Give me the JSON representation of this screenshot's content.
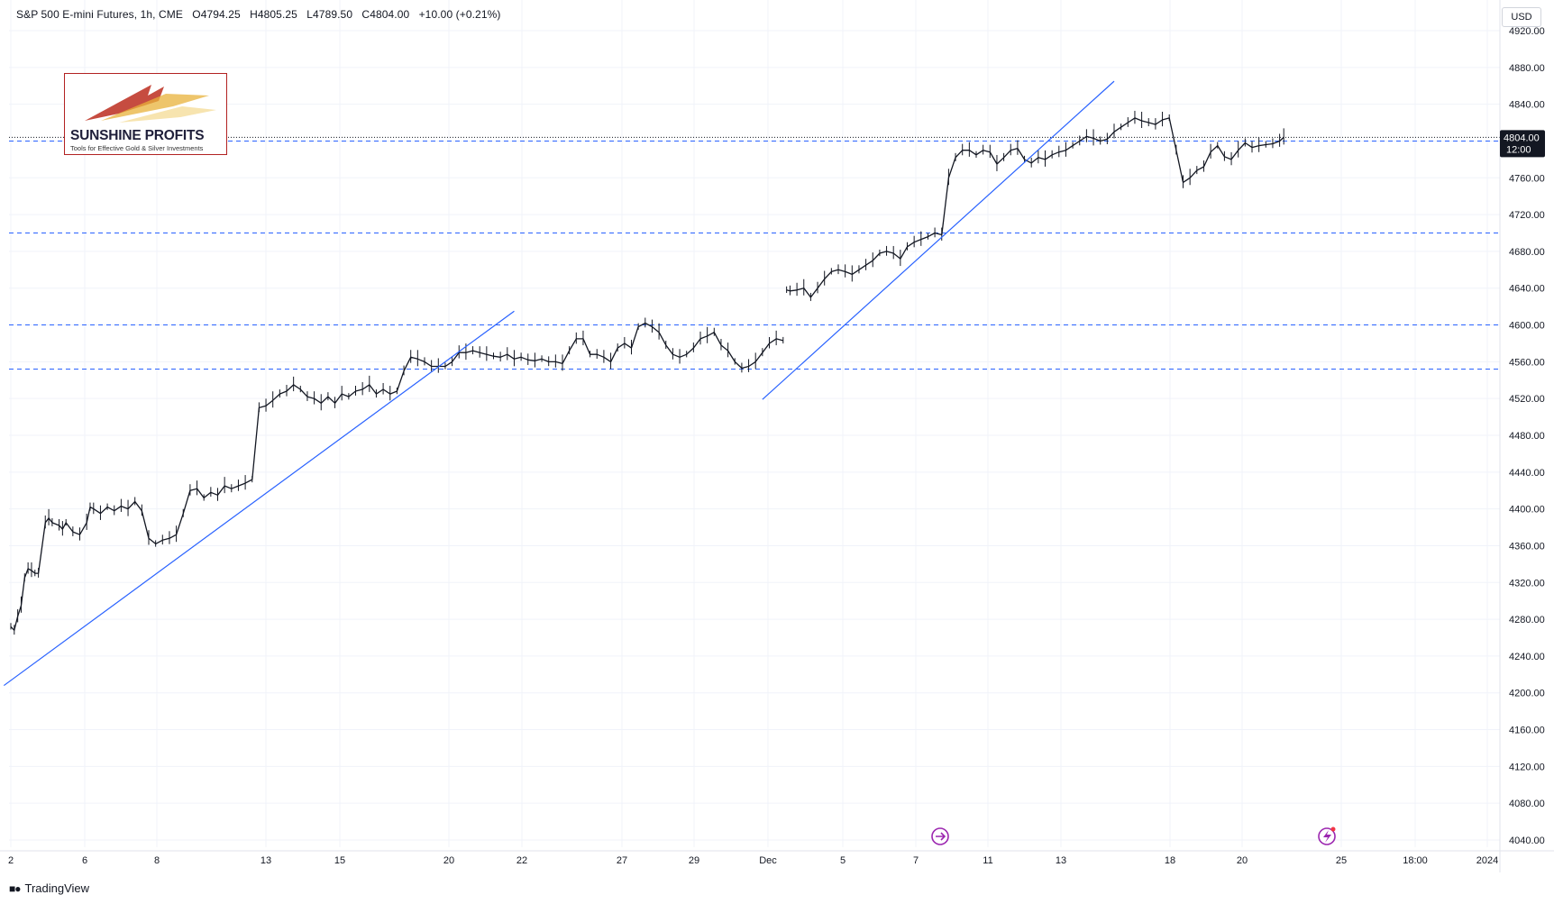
{
  "header": {
    "symbol_line": "S&P 500 E-mini Futures, 1h, CME",
    "open": "O4794.25",
    "high": "H4805.25",
    "low": "L4789.50",
    "close": "C4804.00",
    "change": "+10.00 (+0.21%)",
    "currency": "USD"
  },
  "logo": {
    "title": "SUNSHINE PROFITS",
    "subtitle": "Tools for Effective Gold & Silver Investments"
  },
  "footer": {
    "brand": "TradingView"
  },
  "colors": {
    "price": "#131722",
    "trendline": "#2962ff",
    "level": "#2962ff",
    "grid": "#f0f3fa",
    "axis_text": "#131722",
    "price_label_bg": "#131722",
    "logo_border": "#b22222",
    "event_icon": "#9c27b0"
  },
  "chart_data": {
    "type": "line",
    "title": "S&P 500 E-mini Futures, 1h, CME",
    "interval": "1h",
    "ylim": [
      4040,
      4920
    ],
    "y_ticks": [
      "4040.00",
      "4080.00",
      "4120.00",
      "4160.00",
      "4200.00",
      "4240.00",
      "4280.00",
      "4320.00",
      "4360.00",
      "4400.00",
      "4440.00",
      "4480.00",
      "4520.00",
      "4560.00",
      "4600.00",
      "4640.00",
      "4680.00",
      "4720.00",
      "4760.00",
      "4800.00",
      "4840.00",
      "4880.00",
      "4920.00"
    ],
    "x_labels": [
      "2",
      "6",
      "8",
      "13",
      "15",
      "20",
      "22",
      "27",
      "29",
      "Dec",
      "5",
      "7",
      "11",
      "13",
      "18",
      "20",
      "25",
      "18:00",
      "2024"
    ],
    "grid": true,
    "last_price": {
      "value": "4804.00",
      "time": "12:00"
    },
    "series": [
      {
        "values": [
          [
            0,
            4272
          ],
          [
            0.5,
            4268
          ],
          [
            1,
            4283
          ],
          [
            1.5,
            4295
          ],
          [
            2,
            4325
          ],
          [
            2.5,
            4335
          ],
          [
            3,
            4333
          ],
          [
            3.5,
            4330
          ],
          [
            4,
            4330
          ],
          [
            5,
            4385
          ],
          [
            5.5,
            4390
          ],
          [
            6,
            4385
          ],
          [
            7,
            4382
          ],
          [
            7.5,
            4378
          ],
          [
            8,
            4385
          ],
          [
            9,
            4375
          ],
          [
            10,
            4372
          ],
          [
            11,
            4385
          ],
          [
            11.5,
            4402
          ],
          [
            12,
            4400
          ],
          [
            13,
            4395
          ],
          [
            14,
            4402
          ],
          [
            15,
            4398
          ],
          [
            16,
            4403
          ],
          [
            17,
            4400
          ],
          [
            18,
            4408
          ],
          [
            19,
            4398
          ],
          [
            20,
            4368
          ],
          [
            21,
            4362
          ],
          [
            22,
            4366
          ],
          [
            23,
            4368
          ],
          [
            24,
            4372
          ],
          [
            25,
            4395
          ],
          [
            26,
            4420
          ],
          [
            27,
            4422
          ],
          [
            28,
            4412
          ],
          [
            29,
            4418
          ],
          [
            30,
            4415
          ],
          [
            31,
            4425
          ],
          [
            32,
            4422
          ],
          [
            33,
            4425
          ],
          [
            34,
            4428
          ],
          [
            35,
            4432
          ],
          [
            36,
            4510
          ],
          [
            37,
            4512
          ],
          [
            38,
            4518
          ],
          [
            39,
            4525
          ],
          [
            40,
            4528
          ],
          [
            41,
            4535
          ],
          [
            42,
            4530
          ],
          [
            43,
            4522
          ],
          [
            44,
            4520
          ],
          [
            45,
            4515
          ],
          [
            46,
            4522
          ],
          [
            47,
            4515
          ],
          [
            48,
            4525
          ],
          [
            49,
            4522
          ],
          [
            50,
            4528
          ],
          [
            51,
            4530
          ],
          [
            52,
            4535
          ],
          [
            53,
            4525
          ],
          [
            54,
            4530
          ],
          [
            55,
            4525
          ],
          [
            56,
            4528
          ],
          [
            57,
            4550
          ],
          [
            58,
            4565
          ],
          [
            59,
            4563
          ],
          [
            60,
            4560
          ],
          [
            61,
            4555
          ],
          [
            62,
            4555
          ],
          [
            63,
            4555
          ],
          [
            64,
            4560
          ],
          [
            65,
            4570
          ],
          [
            66,
            4570
          ],
          [
            67,
            4572
          ],
          [
            68,
            4570
          ],
          [
            69,
            4568
          ],
          [
            70,
            4566
          ],
          [
            71,
            4565
          ],
          [
            72,
            4568
          ],
          [
            73,
            4563
          ],
          [
            74,
            4565
          ],
          [
            75,
            4562
          ],
          [
            76,
            4561
          ],
          [
            77,
            4563
          ],
          [
            78,
            4560
          ],
          [
            79,
            4560
          ],
          [
            80,
            4558
          ],
          [
            81,
            4572
          ],
          [
            82,
            4585
          ],
          [
            83,
            4585
          ],
          [
            84,
            4568
          ],
          [
            85,
            4568
          ],
          [
            86,
            4565
          ],
          [
            87,
            4560
          ],
          [
            88,
            4575
          ],
          [
            89,
            4580
          ],
          [
            90,
            4575
          ],
          [
            91,
            4598
          ],
          [
            92,
            4602
          ],
          [
            93,
            4598
          ],
          [
            94,
            4592
          ],
          [
            95,
            4578
          ],
          [
            96,
            4568
          ],
          [
            97,
            4565
          ],
          [
            98,
            4568
          ],
          [
            99,
            4575
          ],
          [
            100,
            4585
          ],
          [
            101,
            4588
          ],
          [
            102,
            4592
          ],
          [
            103,
            4578
          ],
          [
            104,
            4572
          ],
          [
            105,
            4560
          ],
          [
            106,
            4553
          ],
          [
            107,
            4555
          ],
          [
            108,
            4560
          ],
          [
            109,
            4570
          ],
          [
            110,
            4580
          ],
          [
            111,
            4585
          ],
          [
            112,
            4583
          ]
        ]
      },
      {
        "values": [
          [
            112.5,
            4638
          ],
          [
            113,
            4637
          ],
          [
            114,
            4638
          ],
          [
            115,
            4640
          ],
          [
            116,
            4630
          ],
          [
            117,
            4640
          ],
          [
            118,
            4650
          ],
          [
            119,
            4658
          ],
          [
            120,
            4660
          ],
          [
            121,
            4658
          ],
          [
            122,
            4655
          ],
          [
            123,
            4660
          ],
          [
            124,
            4665
          ],
          [
            125,
            4670
          ],
          [
            126,
            4678
          ],
          [
            127,
            4680
          ],
          [
            128,
            4678
          ],
          [
            129,
            4672
          ],
          [
            130,
            4685
          ],
          [
            131,
            4690
          ],
          [
            132,
            4693
          ],
          [
            133,
            4696
          ],
          [
            134,
            4700
          ],
          [
            135,
            4698
          ],
          [
            136,
            4760
          ],
          [
            137,
            4782
          ],
          [
            138,
            4790
          ],
          [
            139,
            4790
          ],
          [
            140,
            4785
          ],
          [
            141,
            4790
          ],
          [
            142,
            4788
          ],
          [
            143,
            4775
          ],
          [
            144,
            4782
          ],
          [
            145,
            4790
          ],
          [
            146,
            4792
          ],
          [
            147,
            4780
          ],
          [
            148,
            4776
          ],
          [
            149,
            4782
          ],
          [
            150,
            4780
          ],
          [
            151,
            4785
          ],
          [
            152,
            4788
          ],
          [
            153,
            4790
          ],
          [
            154,
            4795
          ],
          [
            155,
            4800
          ],
          [
            156,
            4805
          ],
          [
            157,
            4803
          ],
          [
            158,
            4800
          ],
          [
            159,
            4802
          ],
          [
            160,
            4810
          ],
          [
            161,
            4815
          ],
          [
            162,
            4820
          ],
          [
            163,
            4825
          ],
          [
            164,
            4822
          ],
          [
            165,
            4820
          ],
          [
            166,
            4818
          ],
          [
            167,
            4823
          ],
          [
            168,
            4825
          ],
          [
            169,
            4790
          ],
          [
            170,
            4755
          ],
          [
            171,
            4760
          ],
          [
            172,
            4768
          ],
          [
            173,
            4772
          ],
          [
            174,
            4788
          ],
          [
            175,
            4795
          ],
          [
            176,
            4783
          ],
          [
            177,
            4780
          ],
          [
            178,
            4790
          ],
          [
            179,
            4798
          ],
          [
            180,
            4793
          ],
          [
            181,
            4795
          ],
          [
            182,
            4796
          ],
          [
            183,
            4797
          ],
          [
            184,
            4800
          ],
          [
            184.6,
            4804
          ]
        ]
      }
    ],
    "trendlines": [
      {
        "from": [
          -1,
          4208
        ],
        "to": [
          73,
          4615
        ]
      },
      {
        "from": [
          109,
          4519
        ],
        "to": [
          160,
          4865
        ]
      }
    ],
    "levels": [
      4552,
      4600,
      4700,
      4800
    ],
    "reference_dotted": 4804
  }
}
